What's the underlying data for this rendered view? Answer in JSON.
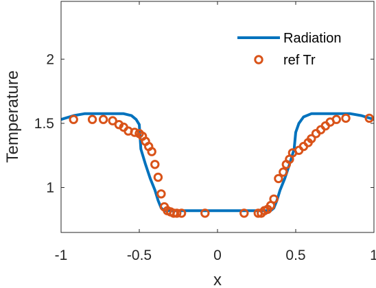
{
  "chart_data": {
    "type": "line",
    "xlabel": "x",
    "ylabel": "Temperature",
    "xlim": [
      -1,
      1
    ],
    "ylim": [
      0.65,
      2.45
    ],
    "xticks": [
      "-1",
      "-0.5",
      "0",
      "0.5",
      "1"
    ],
    "xtick_values": [
      -1,
      -0.5,
      0,
      0.5,
      1
    ],
    "yticks": [
      "1",
      "1.5",
      "2"
    ],
    "ytick_values": [
      1,
      1.5,
      2
    ],
    "grid": false,
    "legend_position": "top-right",
    "series": [
      {
        "name": "Radiation",
        "style": "line",
        "color": "#0072BD",
        "x": [
          -1,
          -0.92,
          -0.85,
          -0.75,
          -0.6,
          -0.55,
          -0.52,
          -0.5,
          -0.49,
          -0.46,
          -0.43,
          -0.4,
          -0.38,
          -0.36,
          -0.34,
          -0.3,
          0,
          0.3,
          0.34,
          0.36,
          0.38,
          0.4,
          0.43,
          0.46,
          0.49,
          0.5,
          0.52,
          0.55,
          0.6,
          0.75,
          0.85,
          0.92,
          1
        ],
        "y": [
          1.53,
          1.56,
          1.575,
          1.575,
          1.575,
          1.56,
          1.53,
          1.49,
          1.3,
          1.18,
          1.07,
          0.98,
          0.9,
          0.84,
          0.82,
          0.82,
          0.82,
          0.82,
          0.82,
          0.84,
          0.9,
          0.98,
          1.07,
          1.18,
          1.3,
          1.43,
          1.5,
          1.55,
          1.575,
          1.575,
          1.575,
          1.56,
          1.53
        ]
      },
      {
        "name": "ref Tr",
        "style": "marker",
        "color": "#D95319",
        "x": [
          -0.92,
          -0.8,
          -0.73,
          -0.67,
          -0.63,
          -0.6,
          -0.57,
          -0.53,
          -0.5,
          -0.48,
          -0.46,
          -0.44,
          -0.42,
          -0.4,
          -0.38,
          -0.36,
          -0.34,
          -0.32,
          -0.3,
          -0.28,
          -0.26,
          -0.23,
          -0.08,
          0.17,
          0.26,
          0.28,
          0.3,
          0.32,
          0.34,
          0.36,
          0.39,
          0.42,
          0.44,
          0.46,
          0.48,
          0.52,
          0.55,
          0.58,
          0.6,
          0.63,
          0.66,
          0.69,
          0.72,
          0.76,
          0.82,
          0.97
        ],
        "y": [
          1.53,
          1.53,
          1.53,
          1.52,
          1.49,
          1.47,
          1.44,
          1.43,
          1.42,
          1.4,
          1.36,
          1.32,
          1.28,
          1.18,
          1.08,
          0.95,
          0.85,
          0.82,
          0.81,
          0.8,
          0.8,
          0.8,
          0.8,
          0.8,
          0.8,
          0.8,
          0.82,
          0.83,
          0.86,
          0.91,
          1.07,
          1.12,
          1.18,
          1.22,
          1.27,
          1.29,
          1.32,
          1.35,
          1.38,
          1.42,
          1.45,
          1.48,
          1.51,
          1.53,
          1.54,
          1.54
        ]
      }
    ]
  }
}
